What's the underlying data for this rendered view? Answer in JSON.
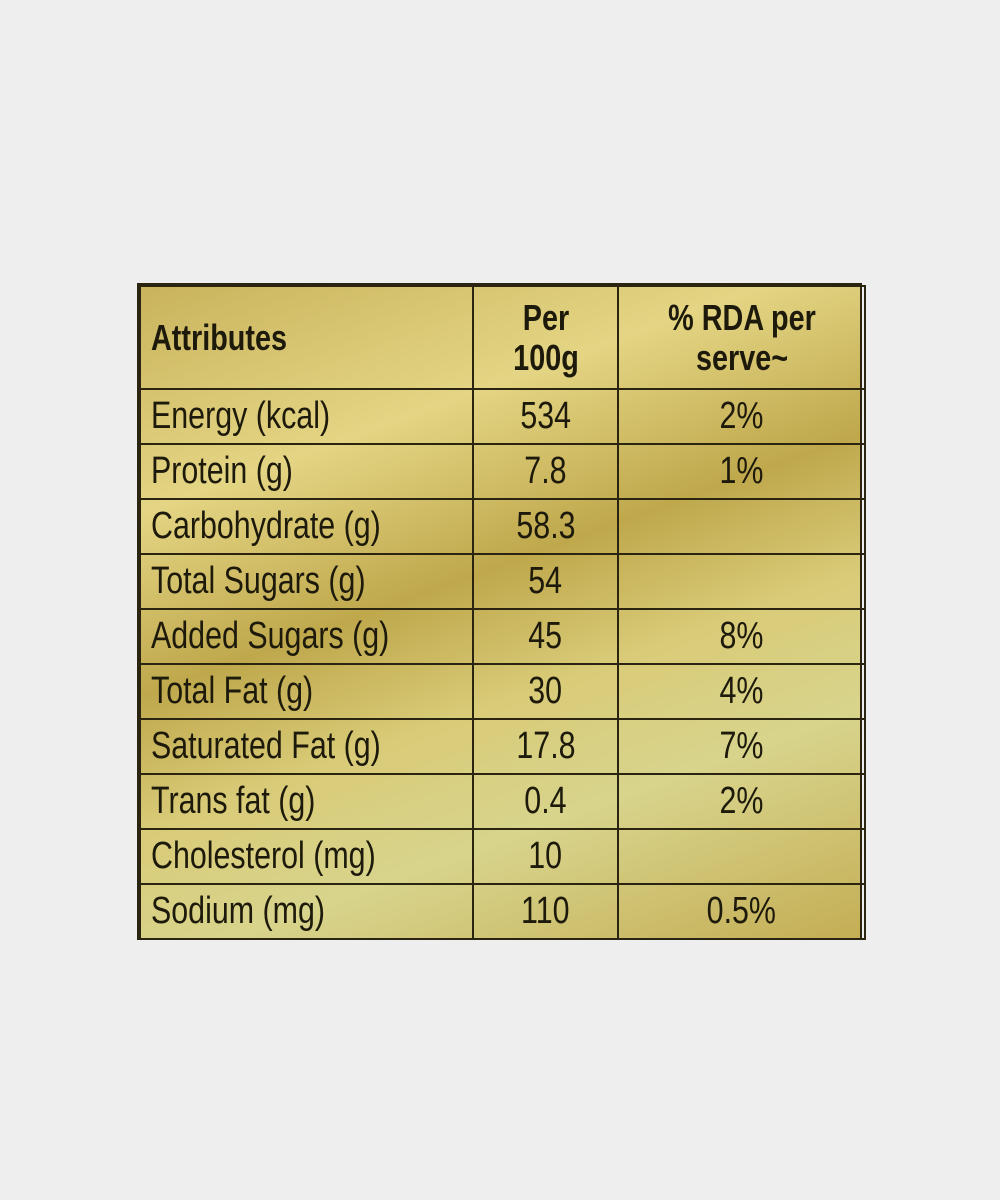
{
  "table": {
    "header": [
      "Attributes",
      "Per 100g",
      "% RDA per serve~"
    ],
    "rows": [
      {
        "attribute": "Energy (kcal)",
        "per_100g": 534,
        "rda": "2%"
      },
      {
        "attribute": "Protein (g)",
        "per_100g": 7.8,
        "rda": "1%"
      },
      {
        "attribute": "Carbohydrate (g)",
        "per_100g": 58.3
      },
      {
        "attribute": "Total Sugars (g)",
        "per_100g": 54
      },
      {
        "attribute": "Added Sugars (g)",
        "per_100g": 45,
        "rda": "8%"
      },
      {
        "attribute": "Total Fat (g)",
        "per_100g": 30,
        "rda": "4%"
      },
      {
        "attribute": "Saturated Fat (g)",
        "per_100g": 17.8,
        "rda": "7%"
      },
      {
        "attribute": "Trans fat (g)",
        "per_100g": 0.4,
        "rda": "2%"
      },
      {
        "attribute": "Cholesterol (mg)",
        "per_100g": 10
      },
      {
        "attribute": "Sodium (mg)",
        "per_100g": 110,
        "rda": "0.5%"
      }
    ]
  }
}
